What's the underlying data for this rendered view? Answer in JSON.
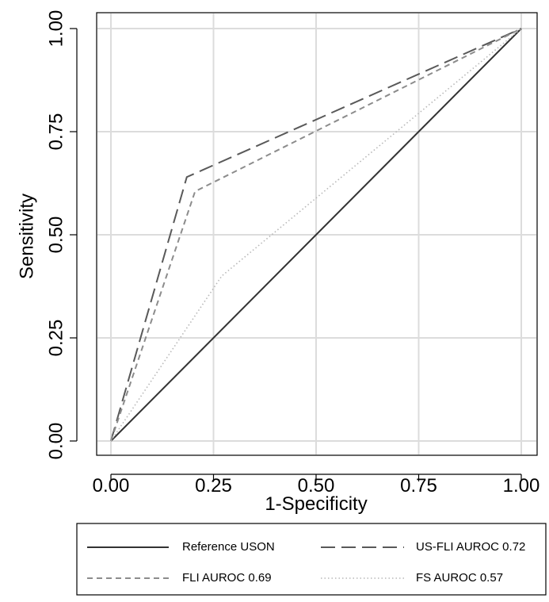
{
  "chart_data": {
    "type": "line",
    "xlabel": "1-Specificity",
    "ylabel": "Sensitivity",
    "xlim": [
      0,
      1
    ],
    "ylim": [
      0,
      1
    ],
    "x_ticks": [
      0,
      0.25,
      0.5,
      0.75,
      1
    ],
    "x_tick_labels": [
      "0.00",
      "0.25",
      "0.50",
      "0.75",
      "1.00"
    ],
    "y_ticks": [
      0,
      0.25,
      0.5,
      0.75,
      1
    ],
    "y_tick_labels": [
      "0.00",
      "0.25",
      "0.50",
      "0.75",
      "1.00"
    ],
    "grid": true,
    "legend_position": "bottom",
    "series": [
      {
        "name": "Reference USON",
        "style": "solid",
        "color": "#333333",
        "x": [
          0,
          1
        ],
        "y": [
          0,
          1
        ]
      },
      {
        "name": "US-FLI AUROC 0.72",
        "style": "long-dash",
        "color": "#595959",
        "x": [
          0,
          0.185,
          1
        ],
        "y": [
          0,
          0.64,
          1
        ]
      },
      {
        "name": "FLI AUROC 0.69",
        "style": "short-dash",
        "color": "#8c8c8c",
        "x": [
          0,
          0.205,
          1
        ],
        "y": [
          0,
          0.605,
          1
        ]
      },
      {
        "name": "FS AUROC 0.57",
        "style": "dotted",
        "color": "#b8b8b8",
        "x": [
          0,
          0.27,
          1
        ],
        "y": [
          0,
          0.4,
          1
        ]
      }
    ]
  }
}
